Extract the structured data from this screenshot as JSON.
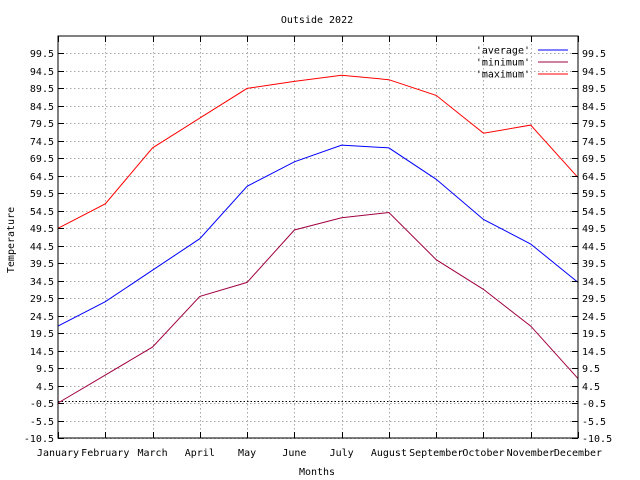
{
  "chart_data": {
    "type": "line",
    "title": "Outside 2022",
    "xlabel": "Months",
    "ylabel": "Temperature",
    "categories": [
      "January",
      "February",
      "March",
      "April",
      "May",
      "June",
      "July",
      "August",
      "September",
      "October",
      "November",
      "December"
    ],
    "ylim": [
      -10.5,
      104.5
    ],
    "yticks": [
      99.5,
      94.5,
      89.5,
      84.5,
      79.5,
      74.5,
      69.5,
      64.5,
      59.5,
      54.5,
      49.5,
      44.5,
      39.5,
      34.5,
      29.5,
      24.5,
      19.5,
      14.5,
      9.5,
      4.5,
      -0.5,
      -5.5,
      -10.5
    ],
    "ytick_labels": [
      "99.5",
      "94.5",
      "89.5",
      "84.5",
      "79.5",
      "74.5",
      "69.5",
      "64.5",
      "59.5",
      "54.5",
      "49.5",
      "44.5",
      "39.5",
      "34.5",
      "29.5",
      "24.5",
      "19.5",
      "14.5",
      "9.5",
      "4.5",
      "-0.5",
      "-5.5",
      "-10.5"
    ],
    "grid": true,
    "zero_line": true,
    "legend_position": "top-right",
    "series": [
      {
        "name": "'average'",
        "color": "#0000ff",
        "values": [
          21.5,
          28.5,
          37.5,
          46.5,
          61.5,
          68.5,
          73.3,
          72.5,
          63.5,
          52.0,
          45.0,
          34.0
        ]
      },
      {
        "name": "'minimum'",
        "color": "#a00040",
        "values": [
          -0.5,
          7.5,
          15.5,
          30.0,
          34.0,
          49.0,
          52.5,
          54.0,
          40.5,
          32.0,
          21.5,
          6.5
        ]
      },
      {
        "name": "'maximum'",
        "color": "#ff0000",
        "values": [
          49.5,
          56.5,
          72.5,
          81.0,
          89.5,
          91.5,
          93.3,
          92.0,
          87.5,
          76.7,
          79.0,
          64.0
        ]
      }
    ]
  }
}
